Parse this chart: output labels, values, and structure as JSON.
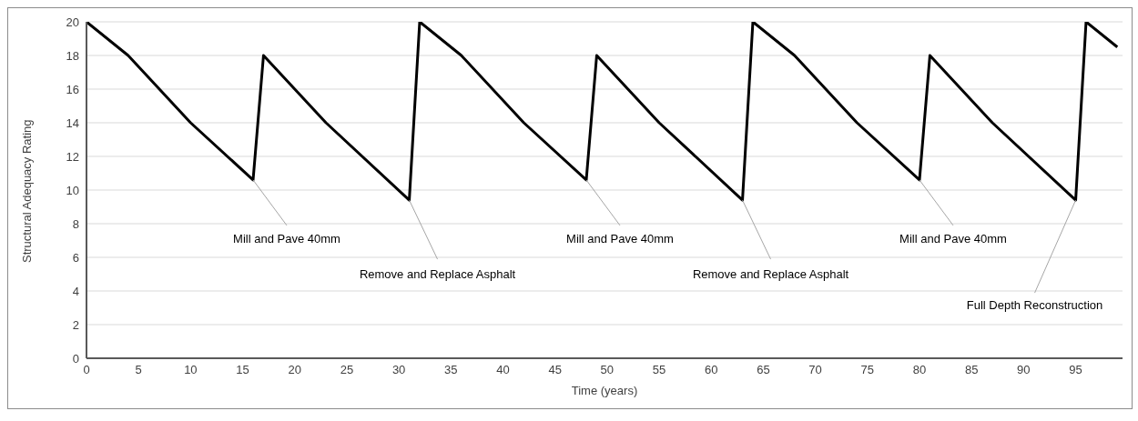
{
  "chart_data": {
    "type": "line",
    "xlabel": "Time (years)",
    "ylabel": "Structural Adequacy Rating",
    "x": [
      0,
      4,
      10,
      16,
      17,
      23,
      31,
      32,
      36,
      42,
      48,
      49,
      55,
      63,
      64,
      68,
      74,
      80,
      81,
      87,
      95,
      96,
      99
    ],
    "series": [
      {
        "color": "#000000",
        "values": [
          20,
          18,
          14,
          10.6,
          18,
          14,
          9.4,
          20,
          18,
          14,
          10.6,
          18,
          14,
          9.4,
          20,
          18,
          14,
          10.6,
          18,
          14,
          9.4,
          20,
          18.5
        ]
      }
    ],
    "xlim": [
      0,
      99.5
    ],
    "xticks": [
      0,
      5,
      10,
      15,
      20,
      25,
      30,
      35,
      40,
      45,
      50,
      55,
      60,
      65,
      70,
      75,
      80,
      85,
      90,
      95
    ],
    "ylim": [
      0,
      20
    ],
    "yticks": [
      0,
      2,
      4,
      6,
      8,
      10,
      12,
      14,
      16,
      18,
      20
    ],
    "grid": "y",
    "marker": "none",
    "line_style": "solid",
    "annotations": [
      {
        "text": "Mill and Pave 40mm",
        "x": 16,
        "y": 10.6
      },
      {
        "text": "Remove and Replace Asphalt",
        "x": 31,
        "y": 9.4
      },
      {
        "text": "Mill and Pave 40mm",
        "x": 48,
        "y": 10.6
      },
      {
        "text": "Remove and Replace Asphalt",
        "x": 63,
        "y": 9.4
      },
      {
        "text": "Mill and Pave 40mm",
        "x": 80,
        "y": 10.6
      },
      {
        "text": "Full Depth Reconstruction",
        "x": 95,
        "y": 9.4
      }
    ]
  }
}
